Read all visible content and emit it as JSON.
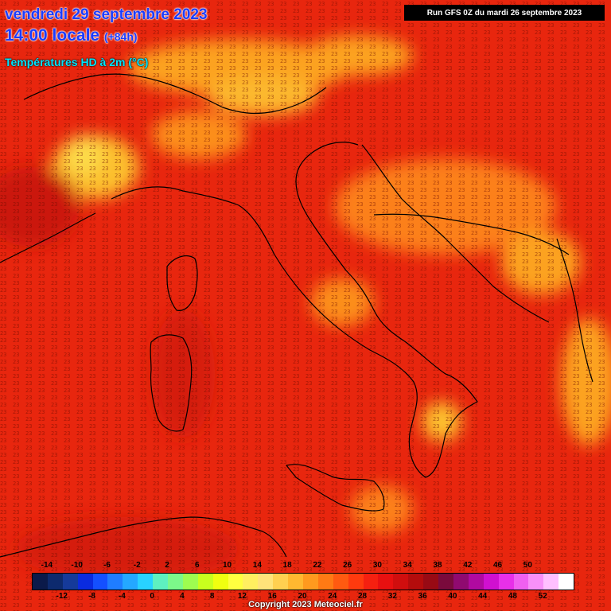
{
  "header": {
    "date_line": "vendredi 29 septembre 2023",
    "time_line": "14:00 locale",
    "lead_time": "(+84h)",
    "product": "Températures HD à 2m (°C)",
    "run_info": "Run GFS 0Z du mardi 26 septembre 2023"
  },
  "legend": {
    "top_labels": [
      "-14",
      "-10",
      "-6",
      "-2",
      "2",
      "6",
      "10",
      "14",
      "18",
      "22",
      "26",
      "30",
      "34",
      "38",
      "42",
      "46",
      "50"
    ],
    "bottom_labels": [
      "-12",
      "-8",
      "-4",
      "0",
      "4",
      "8",
      "12",
      "16",
      "20",
      "24",
      "28",
      "32",
      "36",
      "40",
      "44",
      "48",
      "52"
    ],
    "colors": [
      "#0b1a4a",
      "#0d2a6e",
      "#153a9a",
      "#0a2be0",
      "#1450ff",
      "#1f7dff",
      "#24a8ff",
      "#28d2ff",
      "#5ef0c0",
      "#7cf88a",
      "#9efc50",
      "#c8ff1e",
      "#f0ff10",
      "#ffff40",
      "#ffef60",
      "#ffe37a",
      "#ffd050",
      "#ffb830",
      "#ff9a1e",
      "#ff7a14",
      "#ff5a10",
      "#ff3a0e",
      "#f52010",
      "#e81010",
      "#d00e0e",
      "#b40c0c",
      "#980a14",
      "#7a0a3c",
      "#900a70",
      "#b00aa0",
      "#d010d0",
      "#e830e8",
      "#f060f0",
      "#f890f8",
      "#ffc0ff",
      "#ffffff"
    ]
  },
  "map": {
    "dominant_value": "23",
    "colors": {
      "base": "#e8260e",
      "warm": "#d41a0e",
      "cool": "#ffb020",
      "cooler": "#ffe040"
    }
  },
  "footer": {
    "copyright": "Copyright 2023 Meteociel.fr"
  }
}
